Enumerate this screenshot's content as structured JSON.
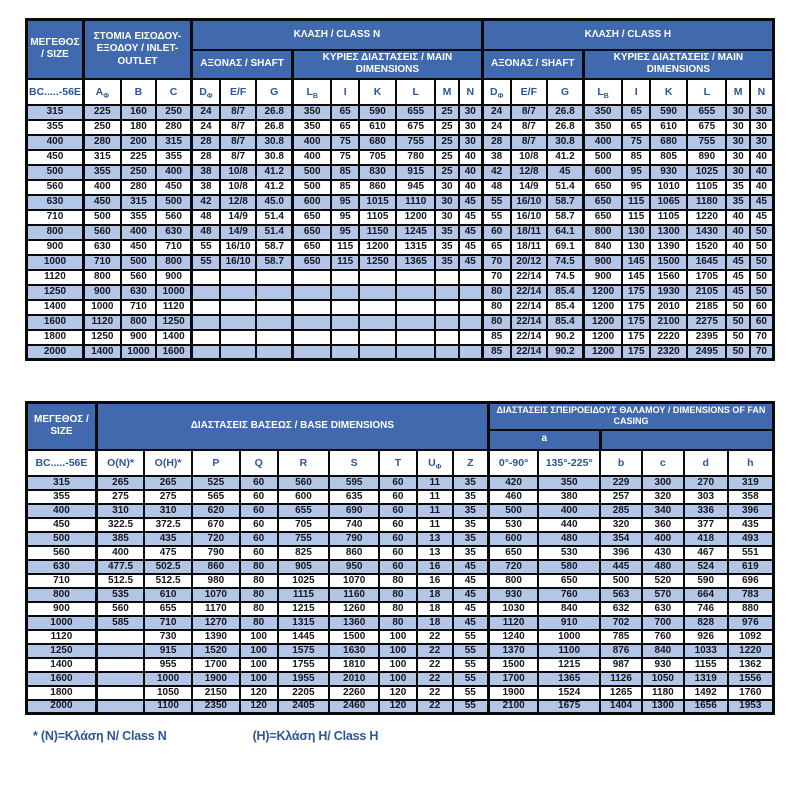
{
  "colors": {
    "header_blue": "#4169ae",
    "row_alt_blue": "#b4c6e7",
    "col_header_text_blue": "#2e5597",
    "data_text": "#16161f",
    "border_black": "#0a0a0a",
    "footnote_blue": "#2e5597"
  },
  "table1": {
    "headers": {
      "size": "ΜΕΓΕΘΟΣ / SIZE",
      "inlet_outlet": "ΣΤΟΜΙΑ ΕΙΣΟΔΟΥ-ΕΞΟΔΟΥ / INLET-OUTLET",
      "class_n": "ΚΛΑΣΗ / CLASS N",
      "class_h": "ΚΛΑΣΗ / CLASS H",
      "shaft": "ΑΞΟΝΑΣ / SHAFT",
      "main_dimensions": "ΚΥΡΙΕΣ ΔΙΑΣΤΑΣΕΙΣ / MAIN DIMENSIONS"
    },
    "columns": [
      {
        "m": "BC.....-56E"
      },
      {
        "m": "A",
        "s": "Φ"
      },
      {
        "m": "B"
      },
      {
        "m": "C"
      },
      {
        "m": "D",
        "s": "Φ"
      },
      {
        "m": "E/F"
      },
      {
        "m": "G"
      },
      {
        "m": "L",
        "s": "B"
      },
      {
        "m": "I"
      },
      {
        "m": "K"
      },
      {
        "m": "L"
      },
      {
        "m": "M"
      },
      {
        "m": "N"
      },
      {
        "m": "D",
        "s": "Φ"
      },
      {
        "m": "E/F"
      },
      {
        "m": "G"
      },
      {
        "m": "L",
        "s": "B"
      },
      {
        "m": "I"
      },
      {
        "m": "K"
      },
      {
        "m": "L"
      },
      {
        "m": "M"
      },
      {
        "m": "N"
      }
    ],
    "rows": [
      [
        "315",
        "225",
        "160",
        "250",
        "24",
        "8/7",
        "26.8",
        "350",
        "65",
        "590",
        "655",
        "25",
        "30",
        "24",
        "8/7",
        "26.8",
        "350",
        "65",
        "590",
        "655",
        "30",
        "30"
      ],
      [
        "355",
        "250",
        "180",
        "280",
        "24",
        "8/7",
        "26.8",
        "350",
        "65",
        "610",
        "675",
        "25",
        "30",
        "24",
        "8/7",
        "26.8",
        "350",
        "65",
        "610",
        "675",
        "30",
        "30"
      ],
      [
        "400",
        "280",
        "200",
        "315",
        "28",
        "8/7",
        "30.8",
        "400",
        "75",
        "680",
        "755",
        "25",
        "30",
        "28",
        "8/7",
        "30.8",
        "400",
        "75",
        "680",
        "755",
        "30",
        "30"
      ],
      [
        "450",
        "315",
        "225",
        "355",
        "28",
        "8/7",
        "30.8",
        "400",
        "75",
        "705",
        "780",
        "25",
        "40",
        "38",
        "10/8",
        "41.2",
        "500",
        "85",
        "805",
        "890",
        "30",
        "40"
      ],
      [
        "500",
        "355",
        "250",
        "400",
        "38",
        "10/8",
        "41.2",
        "500",
        "85",
        "830",
        "915",
        "25",
        "40",
        "42",
        "12/8",
        "45",
        "600",
        "95",
        "930",
        "1025",
        "30",
        "40"
      ],
      [
        "560",
        "400",
        "280",
        "450",
        "38",
        "10/8",
        "41.2",
        "500",
        "85",
        "860",
        "945",
        "30",
        "40",
        "48",
        "14/9",
        "51.4",
        "650",
        "95",
        "1010",
        "1105",
        "35",
        "40"
      ],
      [
        "630",
        "450",
        "315",
        "500",
        "42",
        "12/8",
        "45.0",
        "600",
        "95",
        "1015",
        "1110",
        "30",
        "45",
        "55",
        "16/10",
        "58.7",
        "650",
        "115",
        "1065",
        "1180",
        "35",
        "45"
      ],
      [
        "710",
        "500",
        "355",
        "560",
        "48",
        "14/9",
        "51.4",
        "650",
        "95",
        "1105",
        "1200",
        "30",
        "45",
        "55",
        "16/10",
        "58.7",
        "650",
        "115",
        "1105",
        "1220",
        "40",
        "45"
      ],
      [
        "800",
        "560",
        "400",
        "630",
        "48",
        "14/9",
        "51.4",
        "650",
        "95",
        "1150",
        "1245",
        "35",
        "45",
        "60",
        "18/11",
        "64.1",
        "800",
        "130",
        "1300",
        "1430",
        "40",
        "50"
      ],
      [
        "900",
        "630",
        "450",
        "710",
        "55",
        "16/10",
        "58.7",
        "650",
        "115",
        "1200",
        "1315",
        "35",
        "45",
        "65",
        "18/11",
        "69.1",
        "840",
        "130",
        "1390",
        "1520",
        "40",
        "50"
      ],
      [
        "1000",
        "710",
        "500",
        "800",
        "55",
        "16/10",
        "58.7",
        "650",
        "115",
        "1250",
        "1365",
        "35",
        "45",
        "70",
        "20/12",
        "74.5",
        "900",
        "145",
        "1500",
        "1645",
        "45",
        "50"
      ],
      [
        "1120",
        "800",
        "560",
        "900",
        "",
        "",
        "",
        "",
        "",
        "",
        "",
        "",
        "",
        "70",
        "22/14",
        "74.5",
        "900",
        "145",
        "1560",
        "1705",
        "45",
        "50"
      ],
      [
        "1250",
        "900",
        "630",
        "1000",
        "",
        "",
        "",
        "",
        "",
        "",
        "",
        "",
        "",
        "80",
        "22/14",
        "85.4",
        "1200",
        "175",
        "1930",
        "2105",
        "45",
        "50"
      ],
      [
        "1400",
        "1000",
        "710",
        "1120",
        "",
        "",
        "",
        "",
        "",
        "",
        "",
        "",
        "",
        "80",
        "22/14",
        "85.4",
        "1200",
        "175",
        "2010",
        "2185",
        "50",
        "60"
      ],
      [
        "1600",
        "1120",
        "800",
        "1250",
        "",
        "",
        "",
        "",
        "",
        "",
        "",
        "",
        "",
        "80",
        "22/14",
        "85.4",
        "1200",
        "175",
        "2100",
        "2275",
        "50",
        "60"
      ],
      [
        "1800",
        "1250",
        "900",
        "1400",
        "",
        "",
        "",
        "",
        "",
        "",
        "",
        "",
        "",
        "85",
        "22/14",
        "90.2",
        "1200",
        "175",
        "2220",
        "2395",
        "50",
        "70"
      ],
      [
        "2000",
        "1400",
        "1000",
        "1600",
        "",
        "",
        "",
        "",
        "",
        "",
        "",
        "",
        "",
        "85",
        "22/14",
        "90.2",
        "1200",
        "175",
        "2320",
        "2495",
        "50",
        "70"
      ]
    ]
  },
  "table2": {
    "headers": {
      "size": "ΜΕΓΕΘΟΣ / SIZE",
      "base": "ΔΙΑΣΤΑΣΕΙΣ ΒΑΣΕΩΣ / BASE DIMENSIONS",
      "casing": "ΔΙΑΣΤΑΣΕΙΣ ΣΠΕΙΡΟΕΙΔΟΥΣ ΘΑΛΑΜΟΥ / DIMENSIONS OF FAN CASING",
      "a_label": "a",
      "a_blank": ""
    },
    "columns": [
      {
        "m": "BC.....-56E"
      },
      {
        "m": "O(N)*"
      },
      {
        "m": "O(H)*"
      },
      {
        "m": "P"
      },
      {
        "m": "Q"
      },
      {
        "m": "R"
      },
      {
        "m": "S"
      },
      {
        "m": "T"
      },
      {
        "m": "U",
        "s": "Φ"
      },
      {
        "m": "Z"
      },
      {
        "m": "0°-90°"
      },
      {
        "m": "135°-225°"
      },
      {
        "m": "b"
      },
      {
        "m": "c"
      },
      {
        "m": "d"
      },
      {
        "m": "h"
      }
    ],
    "rows": [
      [
        "315",
        "265",
        "265",
        "525",
        "60",
        "560",
        "595",
        "60",
        "11",
        "35",
        "420",
        "350",
        "229",
        "300",
        "270",
        "319"
      ],
      [
        "355",
        "275",
        "275",
        "565",
        "60",
        "600",
        "635",
        "60",
        "11",
        "35",
        "460",
        "380",
        "257",
        "320",
        "303",
        "358"
      ],
      [
        "400",
        "310",
        "310",
        "620",
        "60",
        "655",
        "690",
        "60",
        "11",
        "35",
        "500",
        "400",
        "285",
        "340",
        "336",
        "396"
      ],
      [
        "450",
        "322.5",
        "372.5",
        "670",
        "60",
        "705",
        "740",
        "60",
        "11",
        "35",
        "530",
        "440",
        "320",
        "360",
        "377",
        "435"
      ],
      [
        "500",
        "385",
        "435",
        "720",
        "60",
        "755",
        "790",
        "60",
        "13",
        "35",
        "600",
        "480",
        "354",
        "400",
        "418",
        "493"
      ],
      [
        "560",
        "400",
        "475",
        "790",
        "60",
        "825",
        "860",
        "60",
        "13",
        "35",
        "650",
        "530",
        "396",
        "430",
        "467",
        "551"
      ],
      [
        "630",
        "477.5",
        "502.5",
        "860",
        "80",
        "905",
        "950",
        "60",
        "16",
        "45",
        "720",
        "580",
        "445",
        "480",
        "524",
        "619"
      ],
      [
        "710",
        "512.5",
        "512.5",
        "980",
        "80",
        "1025",
        "1070",
        "80",
        "16",
        "45",
        "800",
        "650",
        "500",
        "520",
        "590",
        "696"
      ],
      [
        "800",
        "535",
        "610",
        "1070",
        "80",
        "1115",
        "1160",
        "80",
        "18",
        "45",
        "930",
        "760",
        "563",
        "570",
        "664",
        "783"
      ],
      [
        "900",
        "560",
        "655",
        "1170",
        "80",
        "1215",
        "1260",
        "80",
        "18",
        "45",
        "1030",
        "840",
        "632",
        "630",
        "746",
        "880"
      ],
      [
        "1000",
        "585",
        "710",
        "1270",
        "80",
        "1315",
        "1360",
        "80",
        "18",
        "45",
        "1120",
        "910",
        "702",
        "700",
        "828",
        "976"
      ],
      [
        "1120",
        "",
        "730",
        "1390",
        "100",
        "1445",
        "1500",
        "100",
        "22",
        "55",
        "1240",
        "1000",
        "785",
        "760",
        "926",
        "1092"
      ],
      [
        "1250",
        "",
        "915",
        "1520",
        "100",
        "1575",
        "1630",
        "100",
        "22",
        "55",
        "1370",
        "1100",
        "876",
        "840",
        "1033",
        "1220"
      ],
      [
        "1400",
        "",
        "955",
        "1700",
        "100",
        "1755",
        "1810",
        "100",
        "22",
        "55",
        "1500",
        "1215",
        "987",
        "930",
        "1155",
        "1362"
      ],
      [
        "1600",
        "",
        "1000",
        "1900",
        "100",
        "1955",
        "2010",
        "100",
        "22",
        "55",
        "1700",
        "1365",
        "1126",
        "1050",
        "1319",
        "1556"
      ],
      [
        "1800",
        "",
        "1050",
        "2150",
        "120",
        "2205",
        "2260",
        "120",
        "22",
        "55",
        "1900",
        "1524",
        "1265",
        "1180",
        "1492",
        "1760"
      ],
      [
        "2000",
        "",
        "1100",
        "2350",
        "120",
        "2405",
        "2460",
        "120",
        "22",
        "55",
        "2100",
        "1675",
        "1404",
        "1300",
        "1656",
        "1953"
      ]
    ]
  },
  "footnote": {
    "n": "* (N)=Κλάση N/ Class N",
    "h": "(H)=Κλάση H/ Class H"
  }
}
